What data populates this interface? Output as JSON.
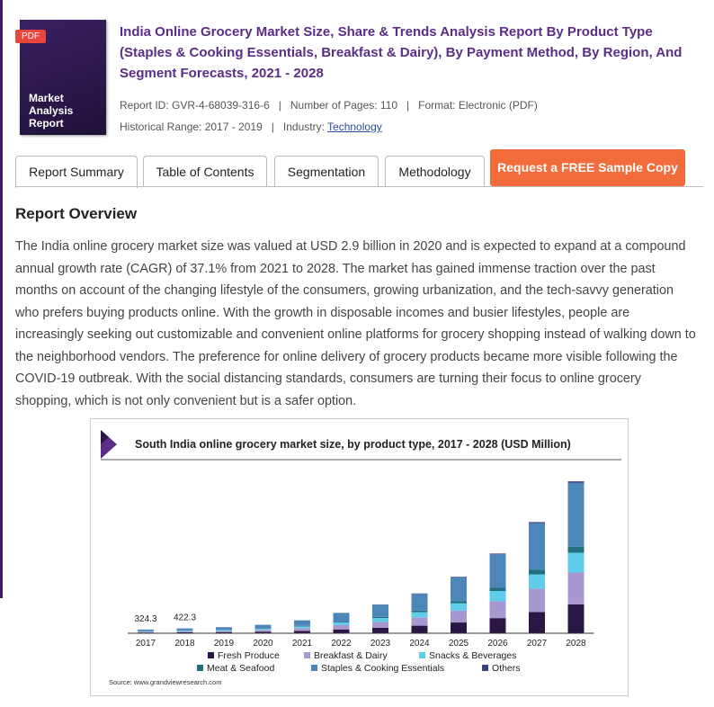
{
  "report": {
    "badge": "PDF",
    "cover_text": "Market Analysis Report",
    "title": "India Online Grocery Market Size, Share & Trends Analysis Report By Product Type (Staples & Cooking Essentials, Breakfast & Dairy), By Payment Method, By Region, And Segment Forecasts, 2021 - 2028",
    "meta_line1": "Report ID: GVR-4-68039-316-6   |   Number of Pages: 110   |   Format: Electronic (PDF)",
    "historical": "Historical Range: 2017 - 2019   |   Industry: ",
    "industry": "Technology"
  },
  "tabs": [
    "Report Summary",
    "Table of Contents",
    "Segmentation",
    "Methodology"
  ],
  "request_button": "Request a FREE Sample Copy",
  "overview": {
    "heading": "Report Overview",
    "text": "The India online grocery market size was valued at USD 2.9 billion in 2020 and is expected to expand at a compound annual growth rate (CAGR) of 37.1% from 2021 to 2028. The market has gained immense traction over the past months on account of the changing lifestyle of the consumers, growing urbanization, and the tech-savvy generation who prefers buying products online. With the growth in disposable incomes and busier lifestyles, people are increasingly seeking out customizable and convenient online platforms for grocery shopping instead of walking down to the neighborhood vendors. The preference for online delivery of grocery products became more visible following the COVID-19 outbreak. With the social distancing standards, consumers are turning their focus to online grocery shopping, which is not only convenient but is a safer option."
  },
  "chart_data": {
    "type": "stacked_bar",
    "title": "South India online grocery market size, by product type, 2017 - 2028 (USD Million)",
    "categories": [
      "2017",
      "2018",
      "2019",
      "2020",
      "2021",
      "2022",
      "2023",
      "2024",
      "2025",
      "2026",
      "2027",
      "2028"
    ],
    "series": [
      {
        "name": "Fresh Produce",
        "color": "#2b1745",
        "values": [
          61.6,
          80.2,
          101,
          141,
          215,
          338,
          477,
          661,
          939,
          1324,
          1847,
          2523
        ]
      },
      {
        "name": "Breakfast & Dairy",
        "color": "#a798cf",
        "values": [
          68.1,
          88.7,
          111,
          155,
          237,
          374,
          527,
          731,
          1037,
          1464,
          2041,
          2789
        ]
      },
      {
        "name": "Snacks & Beverages",
        "color": "#5fcdea",
        "values": [
          42.2,
          54.9,
          69,
          96,
          147,
          231,
          326,
          452,
          642,
          906,
          1264,
          1726
        ]
      },
      {
        "name": "Meat & Seafood",
        "color": "#226f80",
        "values": [
          13.0,
          16.9,
          21,
          30,
          45,
          71,
          100,
          139,
          198,
          279,
          389,
          531
        ]
      },
      {
        "name": "Staples & Cooking Essentials",
        "color": "#4d86b8",
        "values": [
          136.2,
          177.4,
          223,
          311,
          475,
          748,
          1055,
          1462,
          2075,
          2927,
          4082,
          5578
        ]
      },
      {
        "name": "Others",
        "color": "#39447c",
        "values": [
          3.2,
          4.2,
          5,
          7,
          11,
          18,
          25,
          35,
          49,
          70,
          97,
          133
        ]
      }
    ],
    "total_labels": [
      324.3,
      422.3
    ],
    "ylim": [
      0,
      14000
    ],
    "source": "Source: www.grandviewresearch.com"
  }
}
